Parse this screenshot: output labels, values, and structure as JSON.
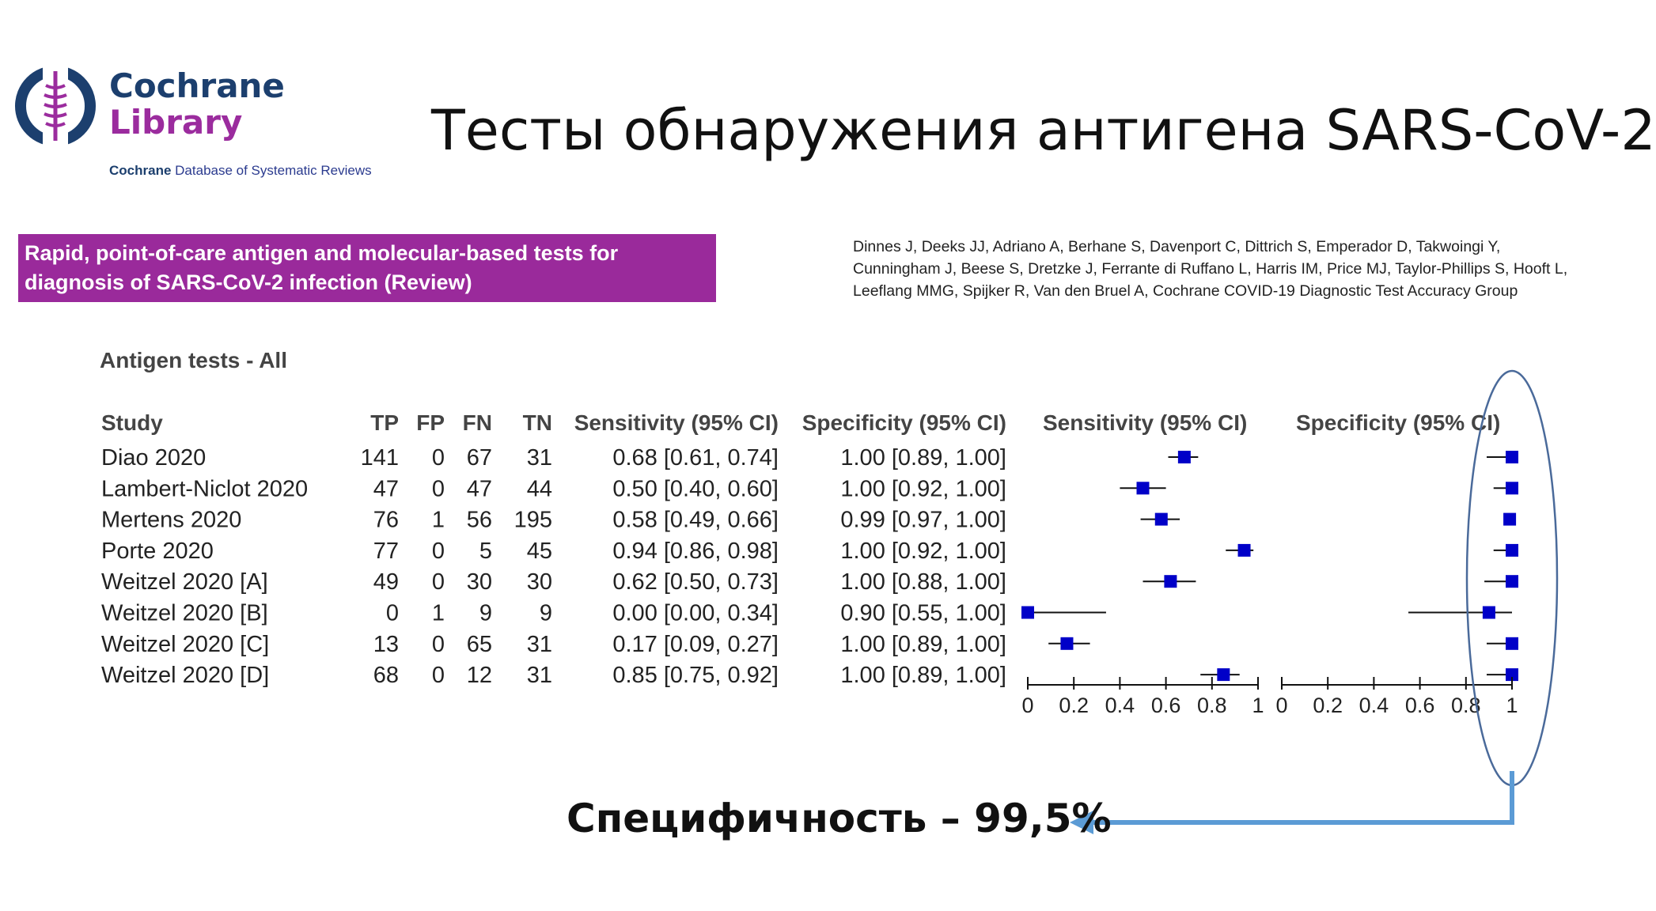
{
  "logo": {
    "line1": "Cochrane",
    "line2": "Library",
    "sub_bold": "Cochrane",
    "sub_rest": "Database of Systematic Reviews",
    "colors": {
      "navy": "#1c3f6e",
      "purple": "#9b2c9e"
    }
  },
  "slide_title": "Тесты обнаружения антигена SARS-CoV-2",
  "banner": {
    "line1": "Rapid, point-of-care antigen and molecular-based tests for",
    "line2": "diagnosis of SARS-CoV-2 infection (Review)",
    "color": "#9a2a9b"
  },
  "authors": "Dinnes J, Deeks JJ, Adriano A, Berhane S, Davenport C, Dittrich S, Emperador D, Takwoingi Y, Cunningham J, Beese S, Dretzke J, Ferrante di Ruffano L, Harris IM, Price MJ, Taylor-Phillips S, Hooft L, Leeflang MMG, Spijker R, Van den Bruel A, Cochrane COVID-19 Diagnostic Test Accuracy Group",
  "bottom_note": "Специфичность – 99,5%",
  "chart_data": {
    "type": "table",
    "title": "Antigen tests - All",
    "columns": [
      "Study",
      "TP",
      "FP",
      "FN",
      "TN",
      "Sensitivity (95% CI)",
      "Specificity (95% CI)"
    ],
    "plot_headers": [
      "Sensitivity (95% CI)",
      "Specificity (95% CI)"
    ],
    "axis_ticks": [
      "0",
      "0.2",
      "0.4",
      "0.6",
      "0.8",
      "1"
    ],
    "xlim": [
      0,
      1
    ],
    "marker_color": "#0000c8",
    "highlight_color": "#5b9bd5",
    "rows": [
      {
        "study": "Diao 2020",
        "tp": "141",
        "fp": "0",
        "fn": "67",
        "tn": "31",
        "sens_text": "0.68 [0.61, 0.74]",
        "spec_text": "1.00 [0.89, 1.00]",
        "sens": [
          0.68,
          0.61,
          0.74
        ],
        "spec": [
          1.0,
          0.89,
          1.0
        ]
      },
      {
        "study": "Lambert-Niclot 2020",
        "tp": "47",
        "fp": "0",
        "fn": "47",
        "tn": "44",
        "sens_text": "0.50 [0.40, 0.60]",
        "spec_text": "1.00 [0.92, 1.00]",
        "sens": [
          0.5,
          0.4,
          0.6
        ],
        "spec": [
          1.0,
          0.92,
          1.0
        ]
      },
      {
        "study": "Mertens 2020",
        "tp": "76",
        "fp": "1",
        "fn": "56",
        "tn": "195",
        "sens_text": "0.58 [0.49, 0.66]",
        "spec_text": "0.99 [0.97, 1.00]",
        "sens": [
          0.58,
          0.49,
          0.66
        ],
        "spec": [
          0.99,
          0.97,
          1.0
        ]
      },
      {
        "study": "Porte 2020",
        "tp": "77",
        "fp": "0",
        "fn": "5",
        "tn": "45",
        "sens_text": "0.94 [0.86, 0.98]",
        "spec_text": "1.00 [0.92, 1.00]",
        "sens": [
          0.94,
          0.86,
          0.98
        ],
        "spec": [
          1.0,
          0.92,
          1.0
        ]
      },
      {
        "study": "Weitzel 2020 [A]",
        "tp": "49",
        "fp": "0",
        "fn": "30",
        "tn": "30",
        "sens_text": "0.62 [0.50, 0.73]",
        "spec_text": "1.00 [0.88, 1.00]",
        "sens": [
          0.62,
          0.5,
          0.73
        ],
        "spec": [
          1.0,
          0.88,
          1.0
        ]
      },
      {
        "study": "Weitzel 2020 [B]",
        "tp": "0",
        "fp": "1",
        "fn": "9",
        "tn": "9",
        "sens_text": "0.00 [0.00, 0.34]",
        "spec_text": "0.90 [0.55, 1.00]",
        "sens": [
          0.0,
          0.0,
          0.34
        ],
        "spec": [
          0.9,
          0.55,
          1.0
        ]
      },
      {
        "study": "Weitzel 2020 [C]",
        "tp": "13",
        "fp": "0",
        "fn": "65",
        "tn": "31",
        "sens_text": "0.17 [0.09, 0.27]",
        "spec_text": "1.00 [0.89, 1.00]",
        "sens": [
          0.17,
          0.09,
          0.27
        ],
        "spec": [
          1.0,
          0.89,
          1.0
        ]
      },
      {
        "study": "Weitzel 2020 [D]",
        "tp": "68",
        "fp": "0",
        "fn": "12",
        "tn": "31",
        "sens_text": "0.85 [0.75, 0.92]",
        "spec_text": "1.00 [0.89, 1.00]",
        "sens": [
          0.85,
          0.75,
          0.92
        ],
        "spec": [
          1.0,
          0.89,
          1.0
        ]
      }
    ]
  }
}
